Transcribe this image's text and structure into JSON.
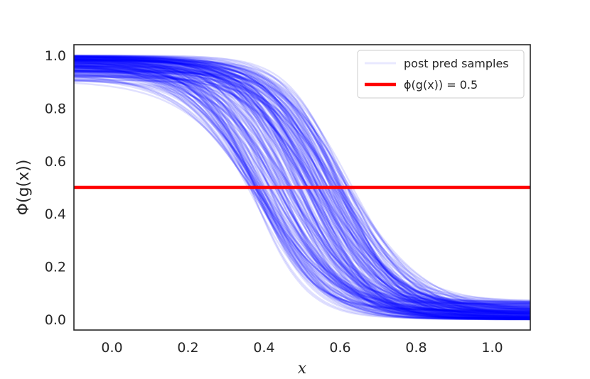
{
  "chart_data": {
    "type": "line",
    "title": "",
    "xlabel": "x",
    "ylabel": "Φ(g(x))",
    "xlim": [
      -0.1,
      1.1
    ],
    "ylim": [
      -0.04,
      1.04
    ],
    "xticks": [
      "0.0",
      "0.2",
      "0.4",
      "0.6",
      "0.8",
      "1.0"
    ],
    "xtick_values": [
      0.0,
      0.2,
      0.4,
      0.6,
      0.8,
      1.0
    ],
    "yticks": [
      "0.0",
      "0.2",
      "0.4",
      "0.6",
      "0.8",
      "1.0"
    ],
    "ytick_values": [
      0.0,
      0.2,
      0.4,
      0.6,
      0.8,
      1.0
    ],
    "grid": false,
    "legend_position": "top-right",
    "series": [
      {
        "name": "post pred samples",
        "color": "#0000ff",
        "kind": "sample-band",
        "description_values": {
          "x_at_half_range": [
            0.37,
            0.63
          ],
          "upper_plateau_range": [
            0.9,
            1.0
          ],
          "lower_plateau_range": [
            0.0,
            0.07
          ]
        }
      },
      {
        "name": "ϕ(g(x)) = 0.5",
        "color": "#ff0000",
        "kind": "hline",
        "y": 0.5
      }
    ],
    "legend": [
      {
        "label": "post pred samples",
        "color": "#e8e8ff"
      },
      {
        "label": "ϕ(g(x)) = 0.5",
        "color": "#ff0000"
      }
    ]
  }
}
